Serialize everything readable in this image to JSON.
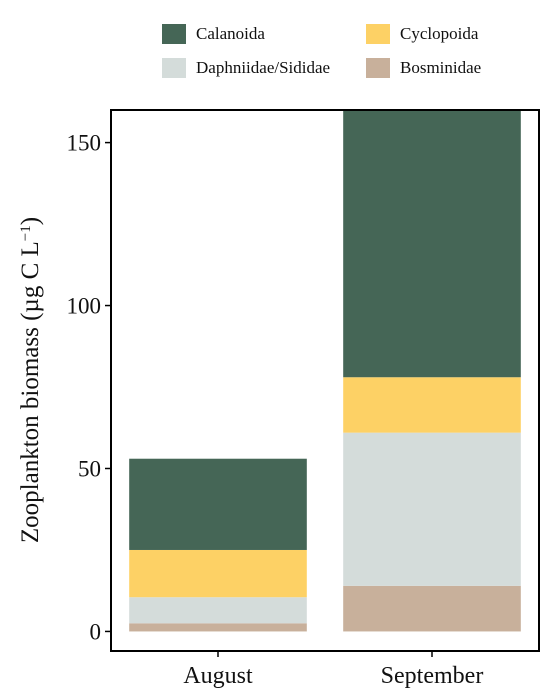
{
  "chart_data": {
    "type": "bar",
    "stacked": true,
    "categories": [
      "August",
      "September"
    ],
    "series": [
      {
        "name": "Bosminidae",
        "color": "#c8b09b",
        "values": [
          2.5,
          14
        ]
      },
      {
        "name": "Daphniidae/Sididae",
        "color": "#d4dcda",
        "values": [
          8,
          47
        ]
      },
      {
        "name": "Cyclopoida",
        "color": "#fdd165",
        "values": [
          14.5,
          17
        ]
      },
      {
        "name": "Calanoida",
        "color": "#456656",
        "values": [
          28,
          82
        ]
      }
    ],
    "title": "",
    "xlabel": "",
    "ylabel_main": "Zooplankton biomass (µg C L",
    "ylabel_sup": "−1",
    "ylabel_close": ")",
    "ylim": [
      -6,
      160
    ],
    "yticks": [
      0,
      50,
      100,
      150
    ],
    "grid": false,
    "legend_position": "top"
  },
  "legend": {
    "items": [
      {
        "name": "Calanoida",
        "color": "#456656"
      },
      {
        "name": "Cyclopoida",
        "color": "#fdd165"
      },
      {
        "name": "Daphniidae/Sididae",
        "color": "#d4dcda"
      },
      {
        "name": "Bosminidae",
        "color": "#c8b09b"
      }
    ]
  }
}
